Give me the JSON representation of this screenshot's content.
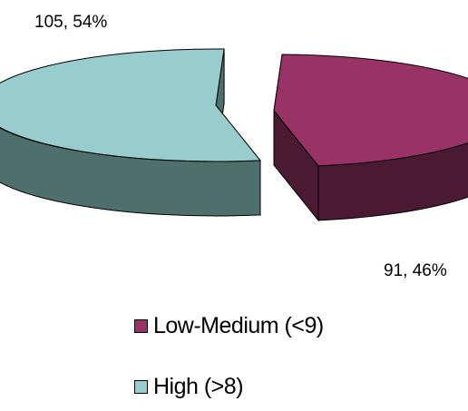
{
  "chart_data": {
    "type": "pie",
    "style": "3d-exploded",
    "title": "",
    "slices": [
      {
        "name": "Low-Medium (<9)",
        "value": 91,
        "percent": 46,
        "label": "91, 46%",
        "color": "#993366",
        "side_color": "#4a1a32"
      },
      {
        "name": "High (>8)",
        "value": 105,
        "percent": 54,
        "label": "105, 54%",
        "color": "#99cccc",
        "side_color": "#4f6f6b"
      }
    ],
    "legend": {
      "position": "bottom"
    }
  }
}
